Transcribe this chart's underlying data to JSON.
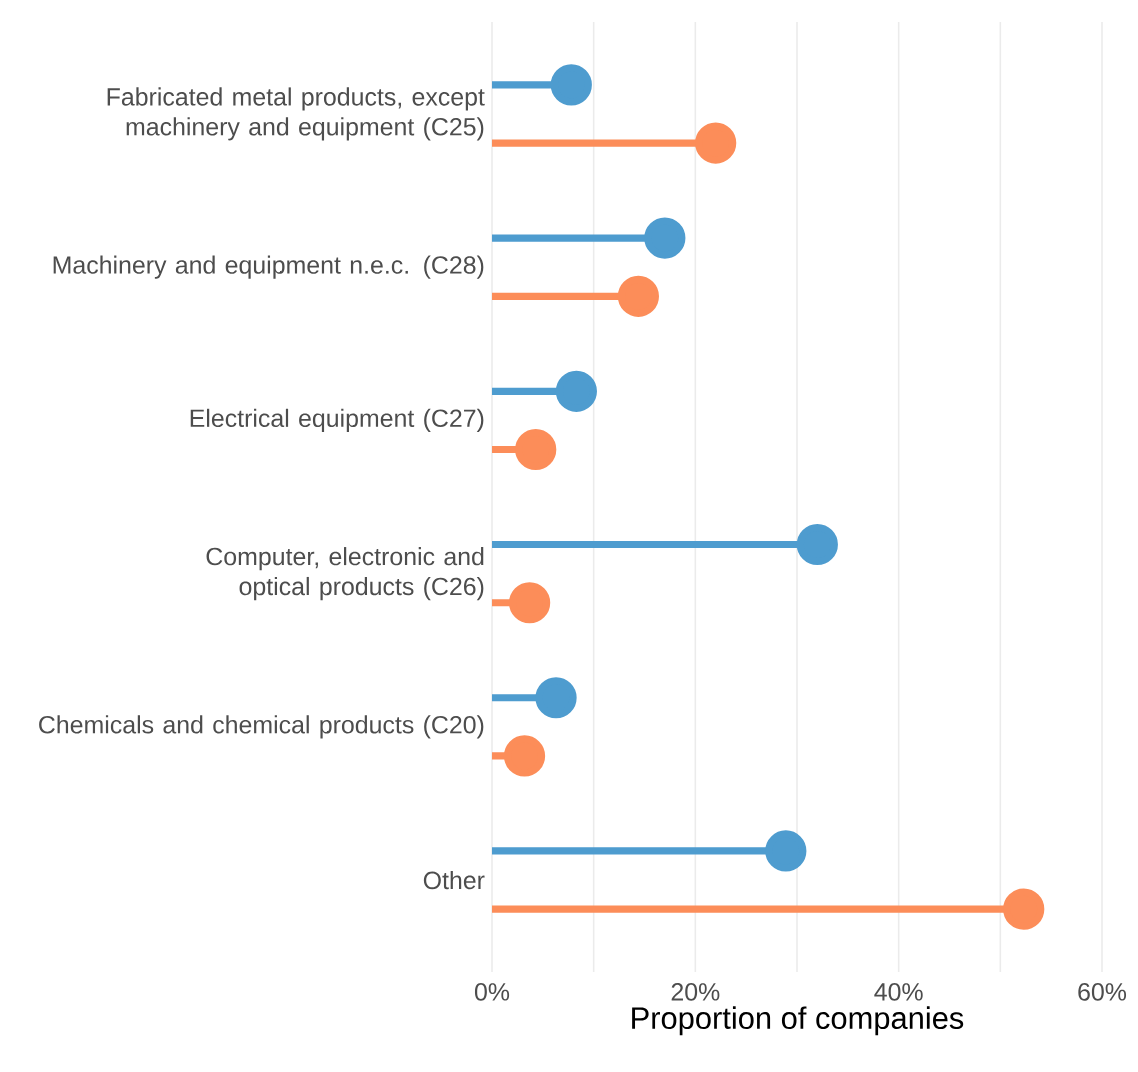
{
  "chart_data": {
    "type": "lollipop",
    "orientation": "horizontal",
    "xlabel": "Proportion of companies",
    "categories": [
      "Fabricated metal products, except machinery and equipment (C25)",
      "Machinery and equipment n.e.c. (C28)",
      "Electrical equipment (C27)",
      "Computer, electronic and optical products (C26)",
      "Chemicals and chemical products (C20)",
      "Other"
    ],
    "series": [
      {
        "color": "#4e9ccf",
        "values": [
          7.8,
          17.0,
          8.3,
          32.0,
          6.3,
          28.9
        ]
      },
      {
        "color": "#fc8d59",
        "values": [
          22.0,
          14.4,
          4.3,
          3.7,
          3.2,
          52.3
        ]
      }
    ],
    "xlim": [
      0,
      60
    ],
    "xticks": [
      {
        "value": 0,
        "label": "0%"
      },
      {
        "value": 10,
        "label": null
      },
      {
        "value": 20,
        "label": "20%"
      },
      {
        "value": 30,
        "label": null
      },
      {
        "value": 40,
        "label": "40%"
      },
      {
        "value": 50,
        "label": null
      },
      {
        "value": 60,
        "label": "60%"
      }
    ],
    "grid": "x",
    "marker": "circle"
  }
}
